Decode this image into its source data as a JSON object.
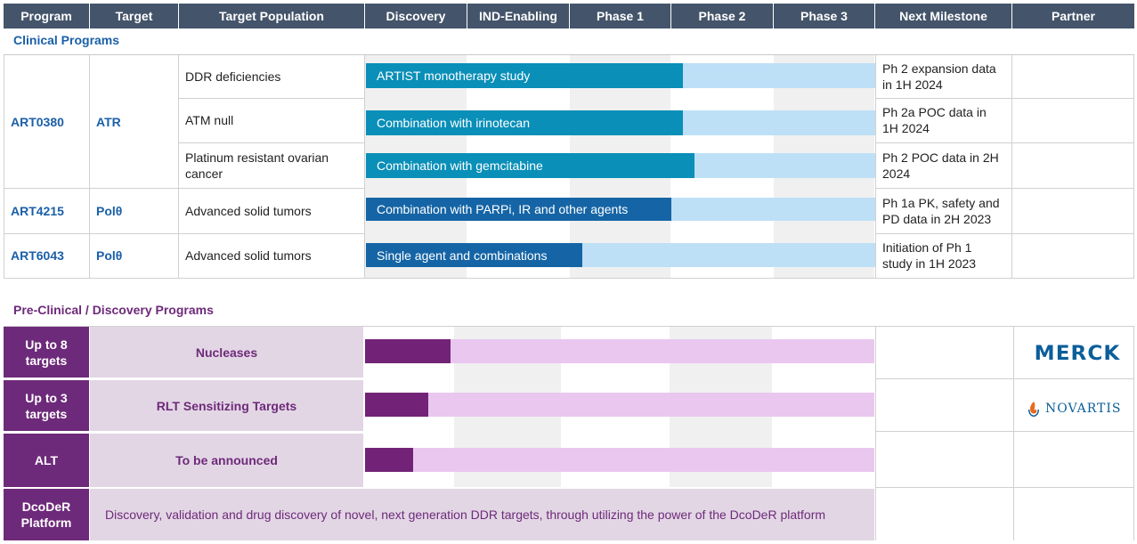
{
  "header": {
    "columns": [
      "Program",
      "Target",
      "Target Population",
      "Discovery",
      "IND-Enabling",
      "Phase 1",
      "Phase 2",
      "Phase 3",
      "Next Milestone",
      "Partner"
    ]
  },
  "clinical": {
    "title": "Clinical Programs",
    "programs": [
      {
        "program": "ART0380",
        "target": "ATR"
      },
      {
        "program": "ART4215",
        "target": "Polθ"
      },
      {
        "program": "ART6043",
        "target": "Polθ"
      }
    ],
    "rows": [
      {
        "population": "DDR deficiencies",
        "bar_label": "ARTIST monotherapy study",
        "milestone": "Ph 2 expansion data in 1H 2024"
      },
      {
        "population": "ATM null",
        "bar_label": "Combination with irinotecan",
        "milestone": "Ph 2a POC data in 1H 2024"
      },
      {
        "population": "Platinum resistant ovarian cancer",
        "bar_label": "Combination with gemcitabine",
        "milestone": "Ph 2 POC data in 2H 2024"
      },
      {
        "population": "Advanced solid tumors",
        "bar_label": "Combination with PARPi, IR and other agents",
        "milestone": "Ph 1a PK, safety and PD data in 2H 2023"
      },
      {
        "population": "Advanced solid tumors",
        "bar_label": "Single agent and combinations",
        "milestone": "Initiation of Ph 1 study in 1H 2023"
      }
    ],
    "colors": {
      "fill_dark": "#0a8fb8",
      "fill_navy": "#1565a6",
      "bg": "#bde0f6"
    }
  },
  "preclinical": {
    "title": "Pre-Clinical / Discovery Programs",
    "rows": [
      {
        "program": "Up to 8 targets",
        "target": "Nucleases",
        "partner": "MERCK"
      },
      {
        "program": "Up to 3 targets",
        "target": "RLT Sensitizing Targets",
        "partner": "NOVARTIS"
      },
      {
        "program": "ALT",
        "target": "To be announced",
        "partner": ""
      }
    ],
    "platform": {
      "program": "DcoDeR Platform",
      "description": "Discovery, validation and drug discovery of novel, next generation DDR targets, through utilizing the power of the DcoDeR platform"
    },
    "colors": {
      "purple": "#6e2a7a",
      "bar": "#732377",
      "bar_bg": "#e9c7ef",
      "lavender": "#e2d6e4",
      "merck": "#0b5e9a",
      "novartis": "#0b5e9a"
    }
  }
}
